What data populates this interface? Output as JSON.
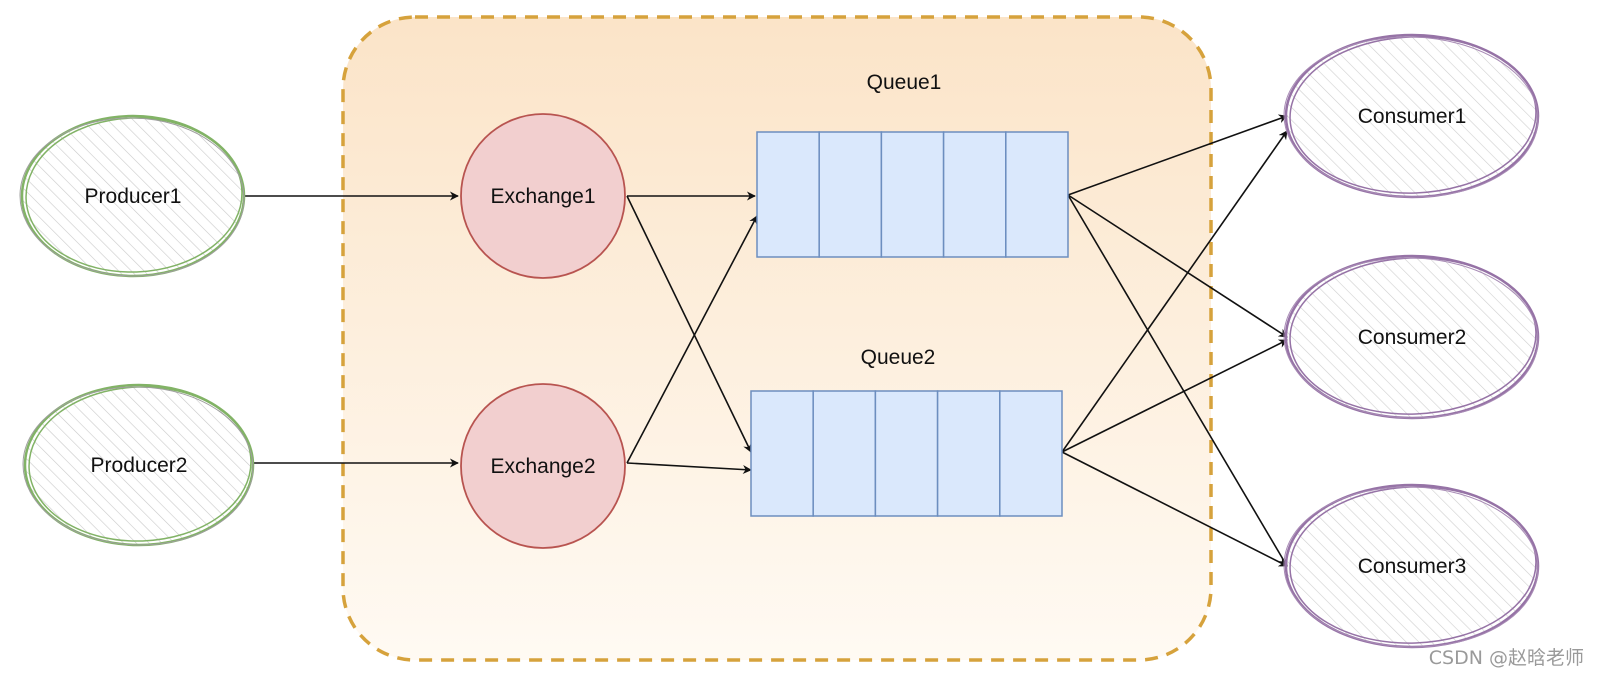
{
  "producers": [
    {
      "id": "p1",
      "label": "Producer1"
    },
    {
      "id": "p2",
      "label": "Producer2"
    }
  ],
  "exchanges": [
    {
      "id": "e1",
      "label": "Exchange1"
    },
    {
      "id": "e2",
      "label": "Exchange2"
    }
  ],
  "queues": [
    {
      "id": "q1",
      "label": "Queue1"
    },
    {
      "id": "q2",
      "label": "Queue2"
    }
  ],
  "consumers": [
    {
      "id": "c1",
      "label": "Consumer1"
    },
    {
      "id": "c2",
      "label": "Consumer2"
    },
    {
      "id": "c3",
      "label": "Consumer3"
    }
  ],
  "edges": [
    {
      "from": "p1",
      "to": "e1"
    },
    {
      "from": "p2",
      "to": "e2"
    },
    {
      "from": "e1",
      "to": "q1"
    },
    {
      "from": "e1",
      "to": "q2"
    },
    {
      "from": "e2",
      "to": "q1"
    },
    {
      "from": "e2",
      "to": "q2"
    },
    {
      "from": "q1",
      "to": "c1"
    },
    {
      "from": "q1",
      "to": "c2"
    },
    {
      "from": "q1",
      "to": "c3"
    },
    {
      "from": "q2",
      "to": "c1"
    },
    {
      "from": "q2",
      "to": "c2"
    },
    {
      "from": "q2",
      "to": "c3"
    }
  ],
  "colors": {
    "producer_stroke": "#82b366",
    "consumer_stroke": "#9673a6",
    "exchange_fill": "#f2cfcf",
    "exchange_stroke": "#b85450",
    "queue_fill": "#dae8fc",
    "queue_stroke": "#6c8ebf",
    "broker_border": "#d6a23c",
    "broker_fill_top": "#fbe4c8",
    "broker_fill_bottom": "#fffaf3"
  },
  "watermark": "CSDN @赵晗老师"
}
